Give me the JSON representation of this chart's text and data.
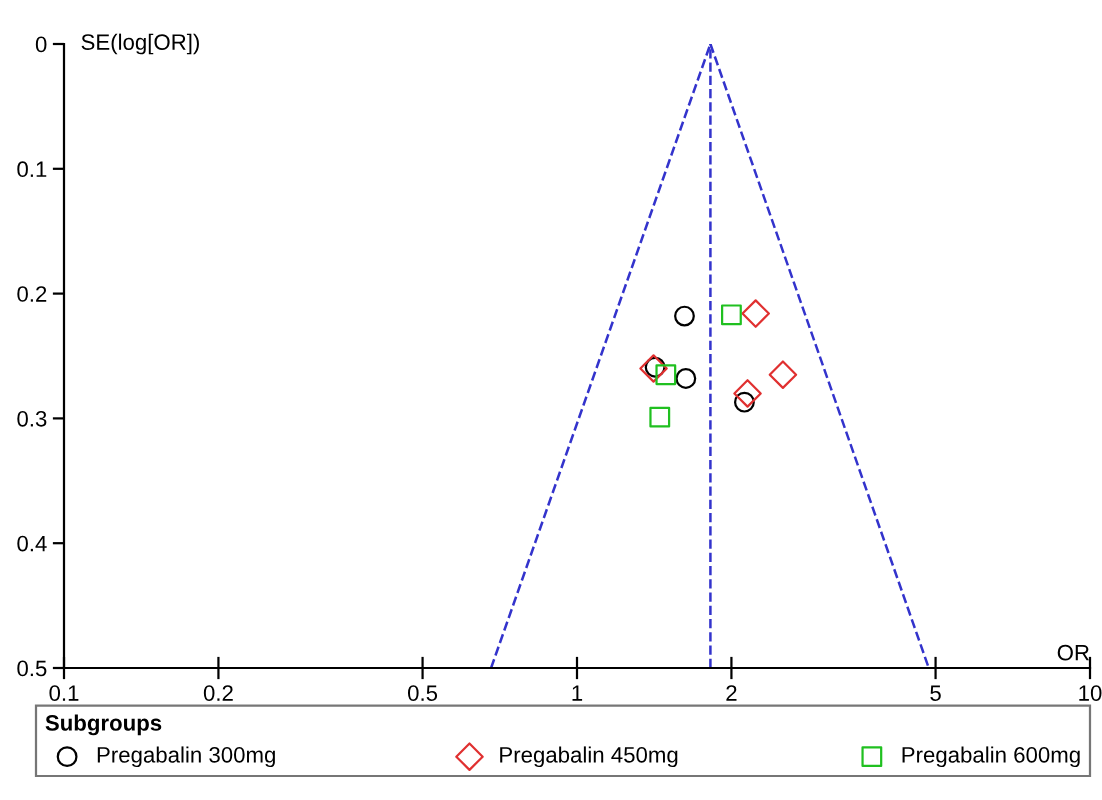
{
  "chart_data": {
    "type": "scatter",
    "xlabel": "OR",
    "ylabel": "SE(log[OR])",
    "legend_title": "Subgroups",
    "legend": "bottom",
    "grid": false,
    "log": "x",
    "xlim": [
      0.1,
      10
    ],
    "xticks": [
      0.1,
      0.2,
      0.5,
      1,
      2,
      5,
      10
    ],
    "ylim": [
      0.5,
      0
    ],
    "yticks": [
      0,
      0.1,
      0.2,
      0.3,
      0.4,
      0.5
    ],
    "ref_lines": [
      {
        "axis": "x",
        "value": 1.82,
        "color": "#3333cc",
        "line_style": "dashed"
      }
    ],
    "series": [
      {
        "name": "Pregabalin 300mg",
        "color": "#000000",
        "marker": "circle",
        "x": [
          1.62,
          1.42,
          1.63,
          2.12
        ],
        "values": [
          0.218,
          0.259,
          0.268,
          0.287
        ]
      },
      {
        "name": "Pregabalin 450mg",
        "color": "#e03030",
        "marker": "diamond",
        "x": [
          2.23,
          1.41,
          2.52,
          2.15
        ],
        "values": [
          0.216,
          0.26,
          0.265,
          0.28
        ]
      },
      {
        "name": "Pregabalin 600mg",
        "color": "#20c020",
        "marker": "square",
        "x": [
          2.0,
          1.49,
          1.45
        ],
        "values": [
          0.217,
          0.265,
          0.299
        ]
      },
      {
        "type": "line",
        "color": "#3333cc",
        "marker": "none",
        "line_style": "dashed",
        "x": [
          0.68,
          1.82
        ],
        "values": [
          0.5,
          0
        ]
      },
      {
        "type": "line",
        "color": "#3333cc",
        "marker": "none",
        "line_style": "dashed",
        "x": [
          1.82,
          4.85
        ],
        "values": [
          0,
          0.5
        ]
      }
    ]
  }
}
